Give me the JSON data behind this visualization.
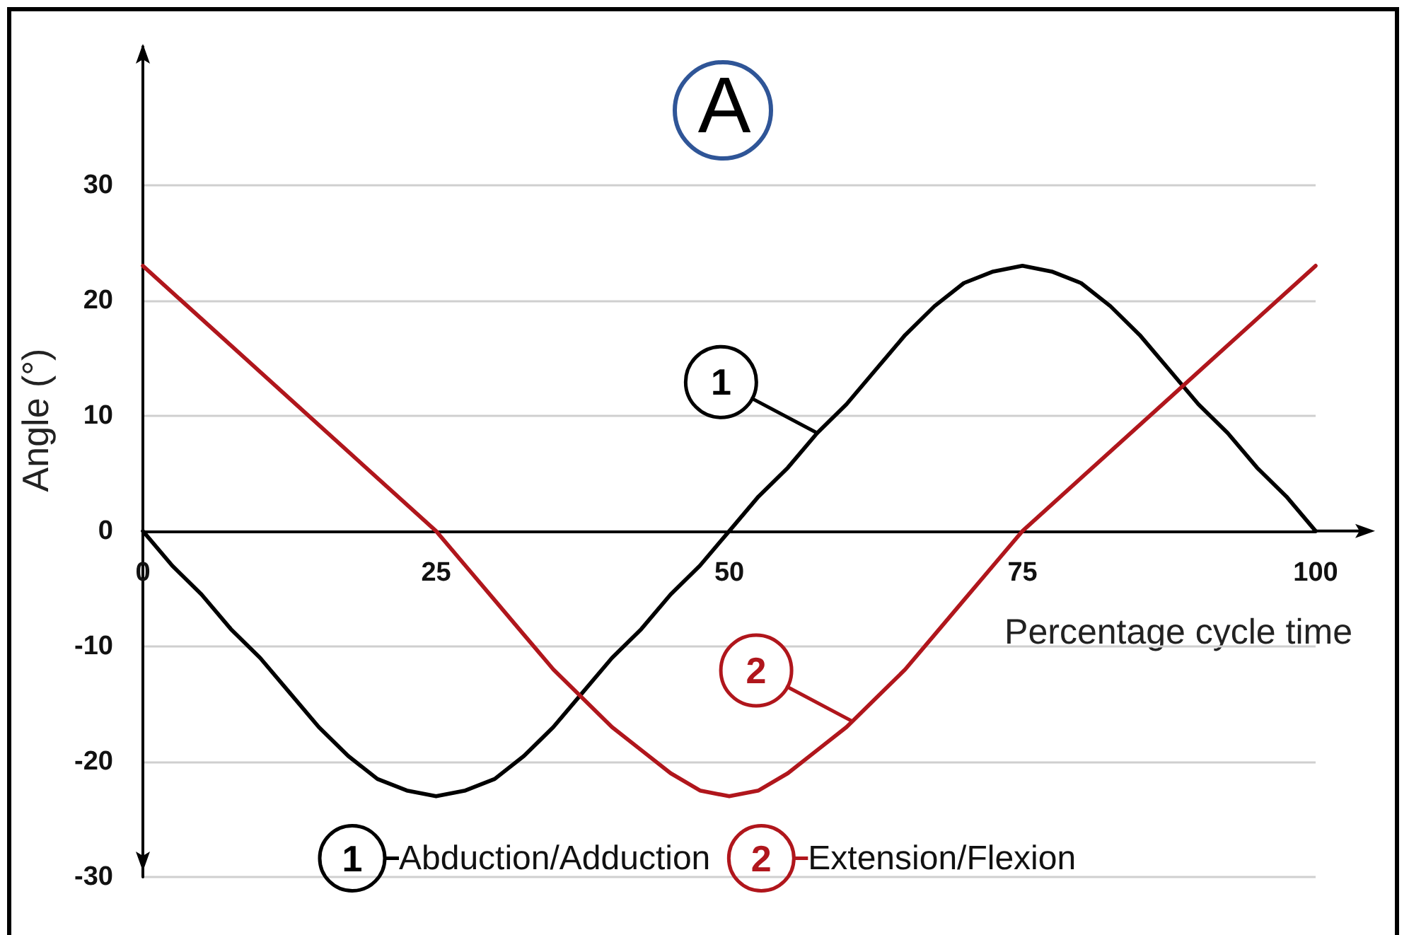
{
  "chart_data": {
    "type": "line",
    "title": "A",
    "xlabel": "Percentage cycle time",
    "ylabel": "Angle (°)",
    "xlim": [
      0,
      100
    ],
    "xticks": [
      0,
      25,
      50,
      75,
      100
    ],
    "ylim": [
      -30,
      42
    ],
    "yticks": [
      -30,
      -20,
      -10,
      0,
      10,
      20,
      30
    ],
    "grid": "y",
    "legend": "bottom",
    "marker": "none",
    "line_style": "solid",
    "series": [
      {
        "name": "Abduction/Adduction",
        "color": "#000000",
        "x": [
          0,
          2.5,
          5,
          7.5,
          10,
          12.5,
          15,
          17.5,
          20,
          22.5,
          25,
          27.5,
          30,
          32.5,
          35,
          37.5,
          40,
          42.5,
          45,
          47.5,
          50,
          52.5,
          55,
          57.5,
          60,
          62.5,
          65,
          67.5,
          70,
          72.5,
          75,
          77.5,
          80,
          82.5,
          85,
          87.5,
          90,
          92.5,
          95,
          97.5,
          100
        ],
        "values": [
          0,
          -3,
          -5.5,
          -8.5,
          -11,
          -14,
          -17,
          -19.5,
          -21.5,
          -22.5,
          -23,
          -22.5,
          -21.5,
          -19.5,
          -17,
          -14,
          -11,
          -8.5,
          -5.5,
          -3,
          0,
          3,
          5.5,
          8.5,
          11,
          14,
          17,
          19.5,
          21.5,
          22.5,
          23,
          22.5,
          21.5,
          19.5,
          17,
          14,
          11,
          8.5,
          5.5,
          3,
          0
        ]
      },
      {
        "name": "Extension/Flexion",
        "color": "#b0161c",
        "x": [
          0,
          12.5,
          25,
          27.5,
          30,
          32.5,
          35,
          37.5,
          40,
          42.5,
          45,
          47.5,
          50,
          52.5,
          55,
          57.5,
          60,
          62.5,
          65,
          67.5,
          70,
          72.5,
          75,
          87.5,
          100
        ],
        "values": [
          23,
          11.5,
          0,
          -3,
          -6,
          -9,
          -12,
          -14.5,
          -17,
          -19,
          -21,
          -22.5,
          -23,
          -22.5,
          -21,
          -19,
          -17,
          -14.5,
          -12,
          -9,
          -6,
          -3,
          0,
          11.5,
          23
        ]
      }
    ],
    "annotations": [
      {
        "text": "1",
        "x": 57.5,
        "y": 8.5
      },
      {
        "text": "2",
        "x": 60.5,
        "y": -16.5
      }
    ]
  }
}
